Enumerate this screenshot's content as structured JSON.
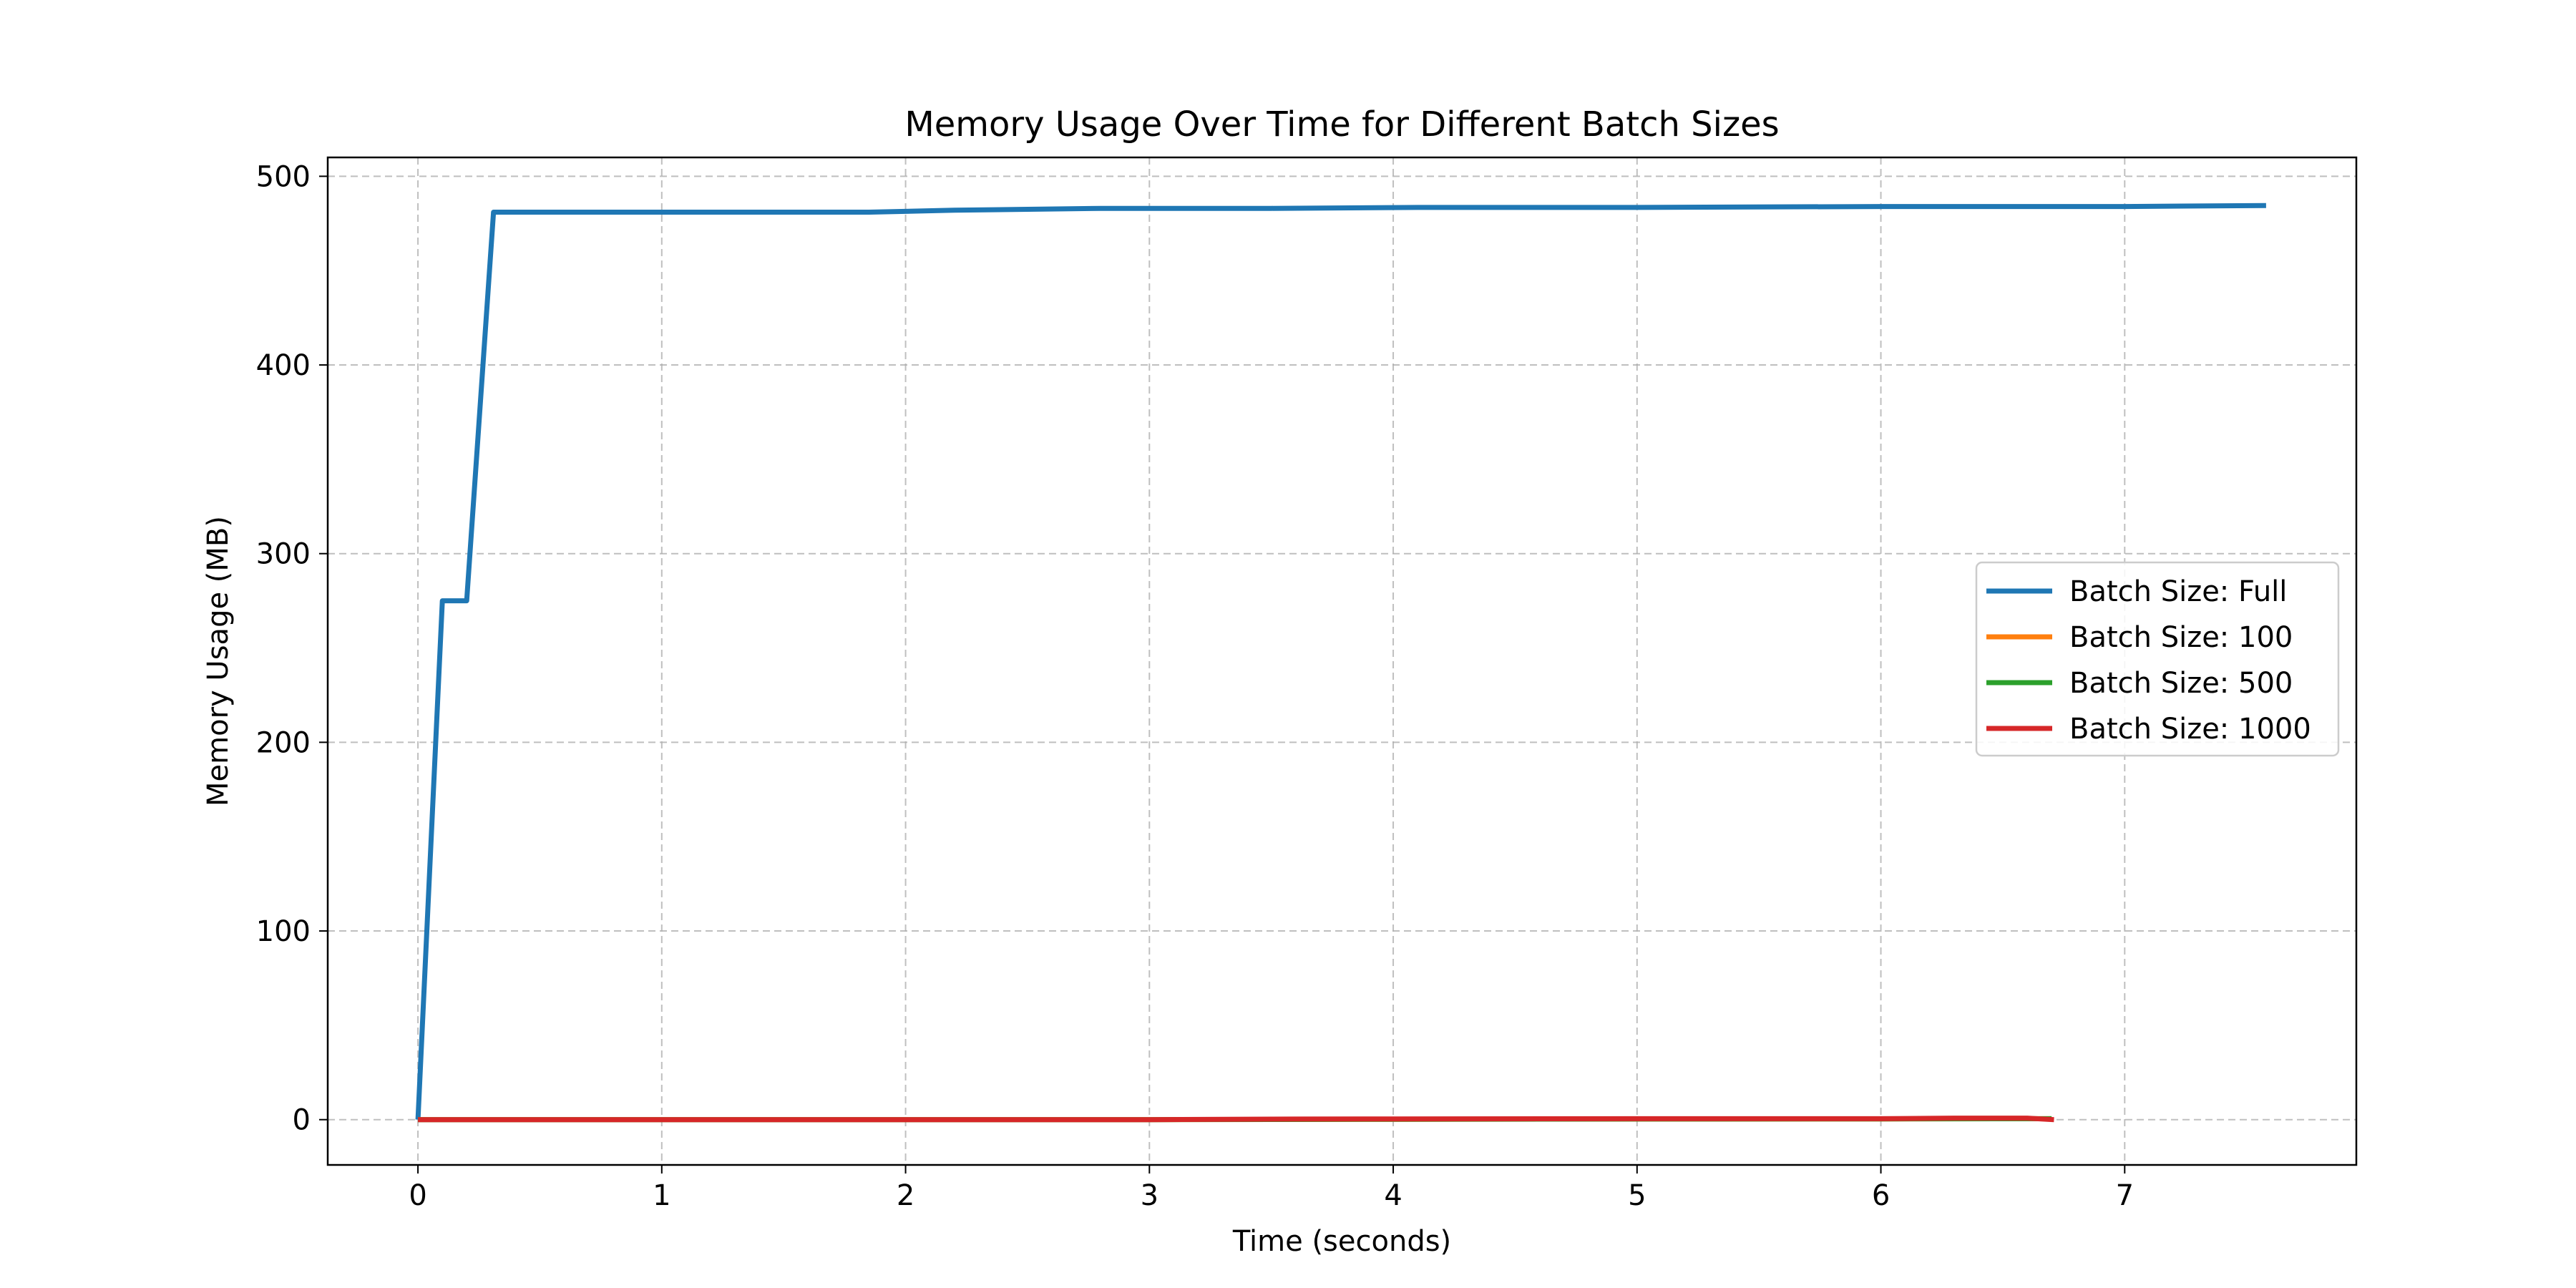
{
  "chart_data": {
    "type": "line",
    "title": "Memory Usage Over Time for Different Batch Sizes",
    "xlabel": "Time (seconds)",
    "ylabel": "Memory Usage (MB)",
    "xlim": [
      -0.37,
      7.95
    ],
    "ylim": [
      -24,
      510
    ],
    "xticks": [
      0,
      1,
      2,
      3,
      4,
      5,
      6,
      7
    ],
    "yticks": [
      0,
      100,
      200,
      300,
      400,
      500
    ],
    "grid": true,
    "legend_position": "center-right",
    "series": [
      {
        "name": "Batch Size: Full",
        "color": "#1f77b4",
        "x": [
          0,
          0.1,
          0.2,
          0.31,
          1.0,
          1.85,
          2.2,
          2.8,
          3.5,
          4.1,
          5.0,
          6.0,
          7.0,
          7.58
        ],
        "y": [
          0,
          275,
          275,
          481,
          481,
          481,
          482,
          483,
          483,
          483.5,
          483.5,
          484,
          484,
          484.5
        ]
      },
      {
        "name": "Batch Size: 100",
        "color": "#ff7f0e",
        "x": [
          0,
          1,
          2,
          3,
          4,
          5,
          6,
          6.7
        ],
        "y": [
          0,
          0,
          0,
          0,
          0.2,
          0.3,
          0.4,
          0.5
        ]
      },
      {
        "name": "Batch Size: 500",
        "color": "#2ca02c",
        "x": [
          0,
          1,
          2,
          3,
          4,
          5,
          6,
          6.7
        ],
        "y": [
          0,
          0,
          0,
          0,
          0.2,
          0.3,
          0.4,
          0.5
        ]
      },
      {
        "name": "Batch Size: 1000",
        "color": "#d62728",
        "x": [
          0,
          1,
          2,
          3,
          3.6,
          4,
          5,
          6,
          6.3,
          6.6,
          6.71
        ],
        "y": [
          0,
          0,
          0,
          0,
          0.3,
          0.4,
          0.5,
          0.5,
          0.8,
          0.8,
          0
        ]
      }
    ]
  }
}
